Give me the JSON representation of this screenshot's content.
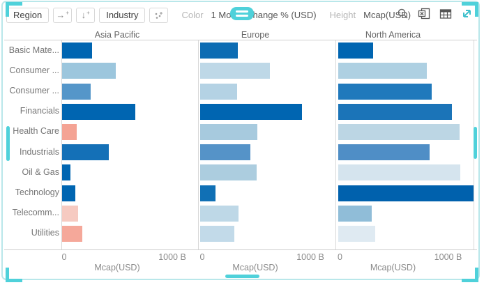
{
  "window": {
    "accent_color": "#4fd1da",
    "border_color": "#b9e7ea"
  },
  "toolbar": {
    "region_label": "Region",
    "industry_label": "Industry",
    "color_label": "Color",
    "color_value": "1 Month Change % (USD)",
    "height_label": "Height",
    "height_value": "Mcap(USD)",
    "icons": {
      "add_column": "arrow-right-plus",
      "add_row": "arrow-down-plus",
      "add_breakdown": "scatter-plus",
      "search": "search",
      "export_excel": "excel-export",
      "table_view": "table-grid",
      "expand": "expand-diagonal"
    }
  },
  "chart_data": {
    "type": "bar",
    "orientation": "horizontal",
    "unit": "billion USD",
    "categories": [
      "Basic Mate...",
      "Consumer ...",
      "Consumer ...",
      "Financials",
      "Health Care",
      "Industrials",
      "Oil & Gas",
      "Technology",
      "Telecomm...",
      "Utilities"
    ],
    "panels": [
      {
        "title": "Asia Pacific",
        "values": [
          275,
          490,
          260,
          670,
          135,
          425,
          75,
          120,
          145,
          185
        ],
        "colors": [
          "#0065b1",
          "#9cc6dd",
          "#5596c9",
          "#0065b1",
          "#f4a394",
          "#1470b7",
          "#0065b1",
          "#0065b1",
          "#f6cac1",
          "#f5a89a"
        ]
      },
      {
        "title": "Europe",
        "values": [
          345,
          635,
          340,
          930,
          520,
          460,
          515,
          140,
          350,
          310
        ],
        "colors": [
          "#0c6cb3",
          "#bed8e7",
          "#b4d2e4",
          "#0065b1",
          "#a7cade",
          "#5593c8",
          "#accddf",
          "#1070b5",
          "#bed8e7",
          "#c2dae9"
        ]
      },
      {
        "title": "North America",
        "values": [
          320,
          810,
          855,
          1040,
          1110,
          840,
          1120,
          1240,
          310,
          340
        ],
        "colors": [
          "#0065b1",
          "#aed0e2",
          "#2079bc",
          "#1b74b8",
          "#bcd6e4",
          "#4f8ec6",
          "#d5e4ee",
          "#0061ad",
          "#90bdd8",
          "#dfeaf2"
        ]
      }
    ],
    "xlabel": "Mcap(USD)",
    "x_ticks": [
      "0",
      "1000 B"
    ],
    "x_axis_range_B": [
      0,
      1250
    ],
    "color_encoding": "1 Month Change % (USD)",
    "height_encoding": "Mcap(USD)",
    "grid": false,
    "legend_position": "none"
  }
}
